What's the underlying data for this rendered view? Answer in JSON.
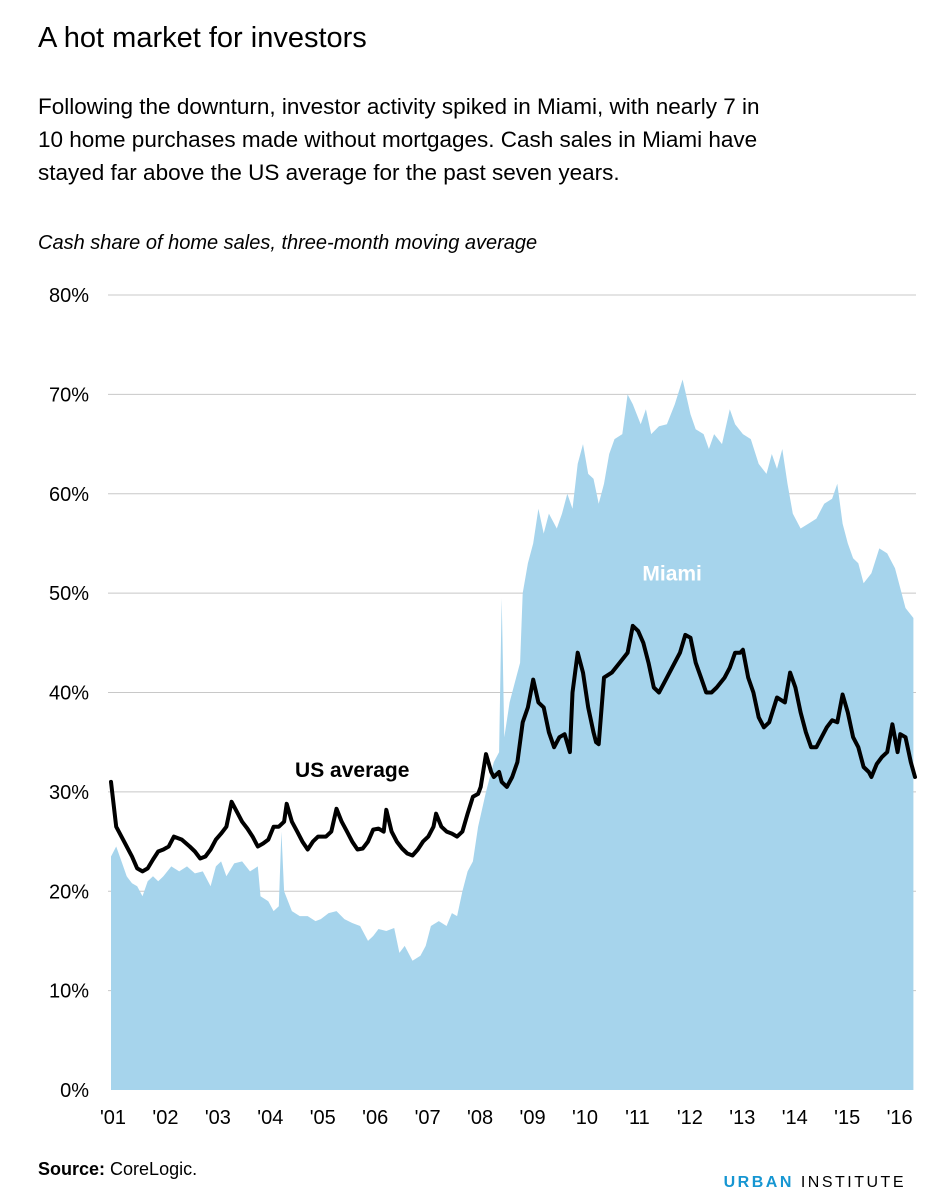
{
  "title": "A hot market for investors",
  "subtitle_lines": [
    "Following the downturn, investor activity spiked in Miami, with nearly 7 in",
    "10 home purchases made without mortgages. Cash sales in Miami have",
    "stayed far above the US average for the past seven years."
  ],
  "source_label": "Source:",
  "source_text": "CoreLogic.",
  "brand": {
    "part1": "URBAN",
    "part2": "INSTITUTE"
  },
  "colors": {
    "miami_area": "#a6d4ec",
    "us_line": "#000000",
    "grid": "#c8c8c8",
    "brand_blue": "#1696d2"
  },
  "chart_data": {
    "type": "area",
    "title": "",
    "ylabel": "Cash share of home sales, three-month moving average",
    "xlabel": "",
    "ylim": [
      0,
      80
    ],
    "xlim": [
      2001.0,
      2016.35
    ],
    "y_ticks": [
      0,
      10,
      20,
      30,
      40,
      50,
      60,
      70,
      80
    ],
    "y_tick_labels": [
      "0%",
      "10%",
      "20%",
      "30%",
      "40%",
      "50%",
      "60%",
      "70%",
      "80%"
    ],
    "x_ticks": [
      2001,
      2002,
      2003,
      2004,
      2005,
      2006,
      2007,
      2008,
      2009,
      2010,
      2011,
      2012,
      2013,
      2014,
      2015,
      2016
    ],
    "x_tick_labels": [
      "'01",
      "'02",
      "'03",
      "'04",
      "'05",
      "'06",
      "'07",
      "'08",
      "'09",
      "'10",
      "'11",
      "'12",
      "'13",
      "'14",
      "'15",
      "'16"
    ],
    "grid": true,
    "series": [
      {
        "name": "Miami",
        "kind": "area",
        "label_at": [
          2011.7,
          52
        ],
        "points": [
          [
            2001.0,
            23.5
          ],
          [
            2001.1,
            24.5
          ],
          [
            2001.2,
            23
          ],
          [
            2001.3,
            21.5
          ],
          [
            2001.4,
            20.8
          ],
          [
            2001.5,
            20.5
          ],
          [
            2001.6,
            19.5
          ],
          [
            2001.7,
            21
          ],
          [
            2001.8,
            21.5
          ],
          [
            2001.9,
            21
          ],
          [
            2002.0,
            21.5
          ],
          [
            2002.15,
            22.5
          ],
          [
            2002.3,
            22
          ],
          [
            2002.45,
            22.5
          ],
          [
            2002.6,
            21.8
          ],
          [
            2002.75,
            22
          ],
          [
            2002.9,
            20.5
          ],
          [
            2003.0,
            22.5
          ],
          [
            2003.1,
            23
          ],
          [
            2003.2,
            21.5
          ],
          [
            2003.35,
            22.8
          ],
          [
            2003.5,
            23
          ],
          [
            2003.65,
            22
          ],
          [
            2003.8,
            22.5
          ],
          [
            2003.85,
            19.5
          ],
          [
            2004.0,
            19
          ],
          [
            2004.1,
            18
          ],
          [
            2004.2,
            18.5
          ],
          [
            2004.25,
            26
          ],
          [
            2004.3,
            20
          ],
          [
            2004.45,
            18
          ],
          [
            2004.6,
            17.5
          ],
          [
            2004.75,
            17.5
          ],
          [
            2004.9,
            17
          ],
          [
            2005.0,
            17.2
          ],
          [
            2005.15,
            17.8
          ],
          [
            2005.3,
            18
          ],
          [
            2005.45,
            17.2
          ],
          [
            2005.6,
            16.8
          ],
          [
            2005.75,
            16.5
          ],
          [
            2005.9,
            15
          ],
          [
            2006.0,
            15.5
          ],
          [
            2006.1,
            16.2
          ],
          [
            2006.25,
            16
          ],
          [
            2006.4,
            16.3
          ],
          [
            2006.5,
            13.8
          ],
          [
            2006.6,
            14.5
          ],
          [
            2006.75,
            13
          ],
          [
            2006.9,
            13.5
          ],
          [
            2007.0,
            14.5
          ],
          [
            2007.1,
            16.5
          ],
          [
            2007.25,
            17
          ],
          [
            2007.4,
            16.5
          ],
          [
            2007.5,
            17.8
          ],
          [
            2007.6,
            17.5
          ],
          [
            2007.7,
            20
          ],
          [
            2007.8,
            22
          ],
          [
            2007.9,
            23
          ],
          [
            2008.0,
            26.5
          ],
          [
            2008.15,
            30
          ],
          [
            2008.3,
            33
          ],
          [
            2008.4,
            34
          ],
          [
            2008.45,
            49.5
          ],
          [
            2008.5,
            35.5
          ],
          [
            2008.6,
            39
          ],
          [
            2008.7,
            41
          ],
          [
            2008.8,
            43
          ],
          [
            2008.85,
            50
          ],
          [
            2008.95,
            53
          ],
          [
            2009.05,
            55
          ],
          [
            2009.15,
            58.5
          ],
          [
            2009.25,
            56
          ],
          [
            2009.35,
            58
          ],
          [
            2009.5,
            56.5
          ],
          [
            2009.6,
            58
          ],
          [
            2009.7,
            60
          ],
          [
            2009.8,
            58.5
          ],
          [
            2009.9,
            63
          ],
          [
            2010.0,
            65
          ],
          [
            2010.1,
            62
          ],
          [
            2010.2,
            61.5
          ],
          [
            2010.3,
            59
          ],
          [
            2010.4,
            61
          ],
          [
            2010.5,
            64
          ],
          [
            2010.6,
            65.5
          ],
          [
            2010.75,
            66
          ],
          [
            2010.85,
            70
          ],
          [
            2010.95,
            69
          ],
          [
            2011.1,
            67
          ],
          [
            2011.2,
            68.5
          ],
          [
            2011.3,
            66
          ],
          [
            2011.45,
            66.8
          ],
          [
            2011.6,
            67
          ],
          [
            2011.75,
            69
          ],
          [
            2011.9,
            71.5
          ],
          [
            2012.05,
            68
          ],
          [
            2012.15,
            66.5
          ],
          [
            2012.3,
            66
          ],
          [
            2012.4,
            64.5
          ],
          [
            2012.5,
            66
          ],
          [
            2012.65,
            65
          ],
          [
            2012.8,
            68.5
          ],
          [
            2012.9,
            67
          ],
          [
            2013.05,
            66
          ],
          [
            2013.2,
            65.5
          ],
          [
            2013.35,
            63
          ],
          [
            2013.5,
            62
          ],
          [
            2013.6,
            64
          ],
          [
            2013.7,
            62.5
          ],
          [
            2013.8,
            64.5
          ],
          [
            2013.9,
            61
          ],
          [
            2014.0,
            58
          ],
          [
            2014.15,
            56.5
          ],
          [
            2014.3,
            57
          ],
          [
            2014.45,
            57.5
          ],
          [
            2014.6,
            59
          ],
          [
            2014.75,
            59.5
          ],
          [
            2014.85,
            61
          ],
          [
            2014.95,
            57
          ],
          [
            2015.05,
            55
          ],
          [
            2015.15,
            53.5
          ],
          [
            2015.25,
            53
          ],
          [
            2015.35,
            51
          ],
          [
            2015.5,
            52
          ],
          [
            2015.65,
            54.5
          ],
          [
            2015.8,
            54
          ],
          [
            2015.95,
            52.5
          ],
          [
            2016.05,
            50.5
          ],
          [
            2016.15,
            48.5
          ],
          [
            2016.3,
            47.5
          ]
        ]
      },
      {
        "name": "US average",
        "kind": "line",
        "label_at": [
          2005.6,
          32.2
        ],
        "points": [
          [
            2001.0,
            31
          ],
          [
            2001.1,
            26.5
          ],
          [
            2001.25,
            25
          ],
          [
            2001.4,
            23.5
          ],
          [
            2001.5,
            22.3
          ],
          [
            2001.6,
            22
          ],
          [
            2001.7,
            22.3
          ],
          [
            2001.8,
            23.2
          ],
          [
            2001.9,
            24
          ],
          [
            2002.0,
            24.2
          ],
          [
            2002.1,
            24.5
          ],
          [
            2002.2,
            25.5
          ],
          [
            2002.35,
            25.2
          ],
          [
            2002.5,
            24.5
          ],
          [
            2002.6,
            24
          ],
          [
            2002.7,
            23.3
          ],
          [
            2002.8,
            23.5
          ],
          [
            2002.9,
            24.2
          ],
          [
            2003.0,
            25.2
          ],
          [
            2003.1,
            25.8
          ],
          [
            2003.2,
            26.5
          ],
          [
            2003.3,
            29
          ],
          [
            2003.4,
            28
          ],
          [
            2003.5,
            27
          ],
          [
            2003.6,
            26.3
          ],
          [
            2003.7,
            25.5
          ],
          [
            2003.8,
            24.5
          ],
          [
            2003.9,
            24.8
          ],
          [
            2004.0,
            25.2
          ],
          [
            2004.1,
            26.5
          ],
          [
            2004.2,
            26.5
          ],
          [
            2004.3,
            27
          ],
          [
            2004.35,
            28.8
          ],
          [
            2004.45,
            27
          ],
          [
            2004.55,
            26
          ],
          [
            2004.65,
            25
          ],
          [
            2004.75,
            24.2
          ],
          [
            2004.85,
            25
          ],
          [
            2004.95,
            25.5
          ],
          [
            2005.1,
            25.5
          ],
          [
            2005.2,
            26
          ],
          [
            2005.3,
            28.3
          ],
          [
            2005.4,
            27
          ],
          [
            2005.5,
            26
          ],
          [
            2005.6,
            25
          ],
          [
            2005.7,
            24.2
          ],
          [
            2005.8,
            24.3
          ],
          [
            2005.9,
            25
          ],
          [
            2006.0,
            26.2
          ],
          [
            2006.1,
            26.3
          ],
          [
            2006.2,
            26
          ],
          [
            2006.25,
            28.2
          ],
          [
            2006.35,
            26
          ],
          [
            2006.45,
            25
          ],
          [
            2006.55,
            24.3
          ],
          [
            2006.65,
            23.8
          ],
          [
            2006.75,
            23.6
          ],
          [
            2006.85,
            24.2
          ],
          [
            2006.95,
            25
          ],
          [
            2007.05,
            25.5
          ],
          [
            2007.15,
            26.5
          ],
          [
            2007.2,
            27.8
          ],
          [
            2007.3,
            26.5
          ],
          [
            2007.4,
            26
          ],
          [
            2007.5,
            25.8
          ],
          [
            2007.6,
            25.5
          ],
          [
            2007.7,
            26
          ],
          [
            2007.8,
            27.8
          ],
          [
            2007.9,
            29.5
          ],
          [
            2008.0,
            29.8
          ],
          [
            2008.05,
            30.5
          ],
          [
            2008.15,
            33.8
          ],
          [
            2008.25,
            32
          ],
          [
            2008.3,
            31.5
          ],
          [
            2008.4,
            32
          ],
          [
            2008.45,
            31
          ],
          [
            2008.55,
            30.5
          ],
          [
            2008.65,
            31.5
          ],
          [
            2008.75,
            33
          ],
          [
            2008.85,
            37
          ],
          [
            2008.95,
            38.5
          ],
          [
            2009.05,
            41.3
          ],
          [
            2009.15,
            39
          ],
          [
            2009.25,
            38.5
          ],
          [
            2009.35,
            36
          ],
          [
            2009.45,
            34.5
          ],
          [
            2009.55,
            35.5
          ],
          [
            2009.65,
            35.8
          ],
          [
            2009.75,
            34
          ],
          [
            2009.8,
            40
          ],
          [
            2009.9,
            44
          ],
          [
            2010.0,
            42
          ],
          [
            2010.1,
            38.5
          ],
          [
            2010.2,
            36
          ],
          [
            2010.25,
            35
          ],
          [
            2010.3,
            34.8
          ],
          [
            2010.4,
            41.5
          ],
          [
            2010.55,
            42
          ],
          [
            2010.7,
            43
          ],
          [
            2010.85,
            44
          ],
          [
            2010.95,
            46.7
          ],
          [
            2011.05,
            46.2
          ],
          [
            2011.15,
            45
          ],
          [
            2011.25,
            43
          ],
          [
            2011.35,
            40.5
          ],
          [
            2011.45,
            40
          ],
          [
            2011.55,
            41
          ],
          [
            2011.7,
            42.5
          ],
          [
            2011.85,
            44
          ],
          [
            2011.95,
            45.8
          ],
          [
            2012.05,
            45.5
          ],
          [
            2012.15,
            43
          ],
          [
            2012.25,
            41.5
          ],
          [
            2012.35,
            40
          ],
          [
            2012.45,
            40
          ],
          [
            2012.55,
            40.5
          ],
          [
            2012.7,
            41.5
          ],
          [
            2012.8,
            42.5
          ],
          [
            2012.9,
            44
          ],
          [
            2013.0,
            44
          ],
          [
            2013.05,
            44.3
          ],
          [
            2013.15,
            41.5
          ],
          [
            2013.25,
            40
          ],
          [
            2013.35,
            37.5
          ],
          [
            2013.45,
            36.5
          ],
          [
            2013.55,
            37
          ],
          [
            2013.7,
            39.5
          ],
          [
            2013.85,
            39
          ],
          [
            2013.95,
            42
          ],
          [
            2014.05,
            40.5
          ],
          [
            2014.15,
            38
          ],
          [
            2014.25,
            36
          ],
          [
            2014.35,
            34.5
          ],
          [
            2014.45,
            34.5
          ],
          [
            2014.55,
            35.5
          ],
          [
            2014.65,
            36.5
          ],
          [
            2014.75,
            37.2
          ],
          [
            2014.85,
            37
          ],
          [
            2014.95,
            39.8
          ],
          [
            2015.05,
            38
          ],
          [
            2015.15,
            35.5
          ],
          [
            2015.25,
            34.5
          ],
          [
            2015.35,
            32.5
          ],
          [
            2015.45,
            32
          ],
          [
            2015.5,
            31.5
          ],
          [
            2015.6,
            32.8
          ],
          [
            2015.7,
            33.5
          ],
          [
            2015.8,
            34
          ],
          [
            2015.9,
            36.8
          ],
          [
            2016.0,
            34
          ],
          [
            2016.05,
            35.8
          ],
          [
            2016.15,
            35.5
          ],
          [
            2016.25,
            33
          ],
          [
            2016.33,
            31.5
          ]
        ]
      }
    ]
  }
}
